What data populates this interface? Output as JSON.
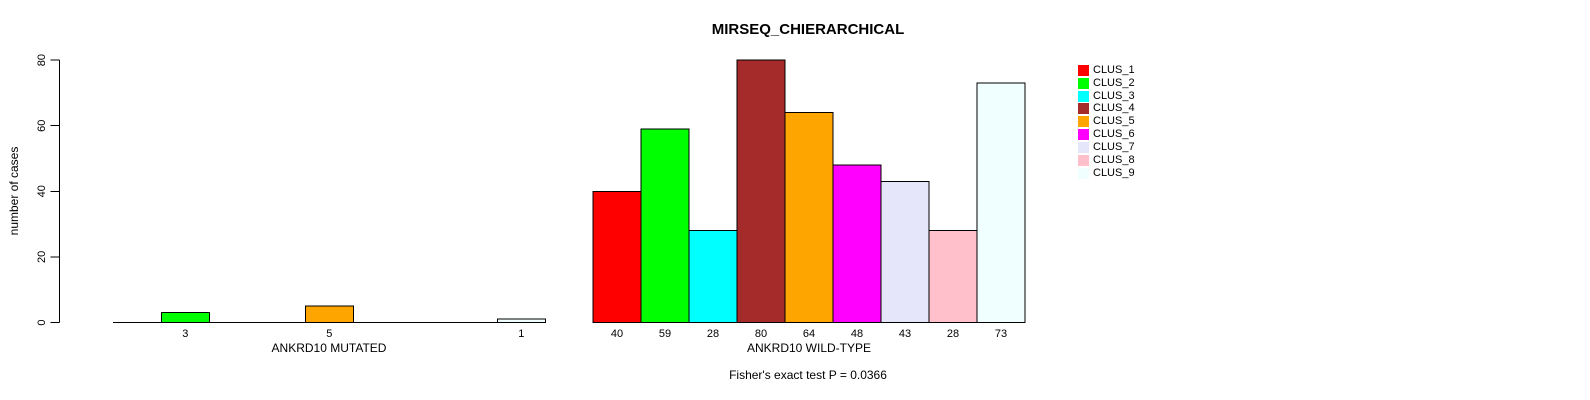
{
  "chart_data": {
    "type": "bar",
    "title": "MIRSEQ_CHIERARCHICAL",
    "ylabel": "number of cases",
    "ylim": [
      0,
      80
    ],
    "yticks": [
      0,
      20,
      40,
      60,
      80
    ],
    "grid": false,
    "legend_position": "right",
    "categories": [
      "CLUS_1",
      "CLUS_2",
      "CLUS_3",
      "CLUS_4",
      "CLUS_5",
      "CLUS_6",
      "CLUS_7",
      "CLUS_8",
      "CLUS_9"
    ],
    "colors": [
      "#FF0000",
      "#00FF00",
      "#00FFFF",
      "#A52A2A",
      "#FFA500",
      "#FF00FF",
      "#E6E6FA",
      "#FFC0CB",
      "#F0FFFF"
    ],
    "groups": [
      {
        "label": "ANKRD10 MUTATED",
        "values": [
          0,
          3,
          0,
          0,
          5,
          0,
          0,
          0,
          1
        ],
        "bar_labels": [
          "",
          "3",
          "",
          "",
          "5",
          "",
          "",
          "",
          "1"
        ]
      },
      {
        "label": "ANKRD10 WILD-TYPE",
        "values": [
          40,
          59,
          28,
          80,
          64,
          48,
          43,
          28,
          73
        ],
        "bar_labels": [
          "40",
          "59",
          "28",
          "80",
          "64",
          "48",
          "43",
          "28",
          "73"
        ]
      }
    ],
    "annotation": "Fisher's exact test P = 0.0366",
    "axis_color": "#000000",
    "bar_border_color": "#000000"
  }
}
